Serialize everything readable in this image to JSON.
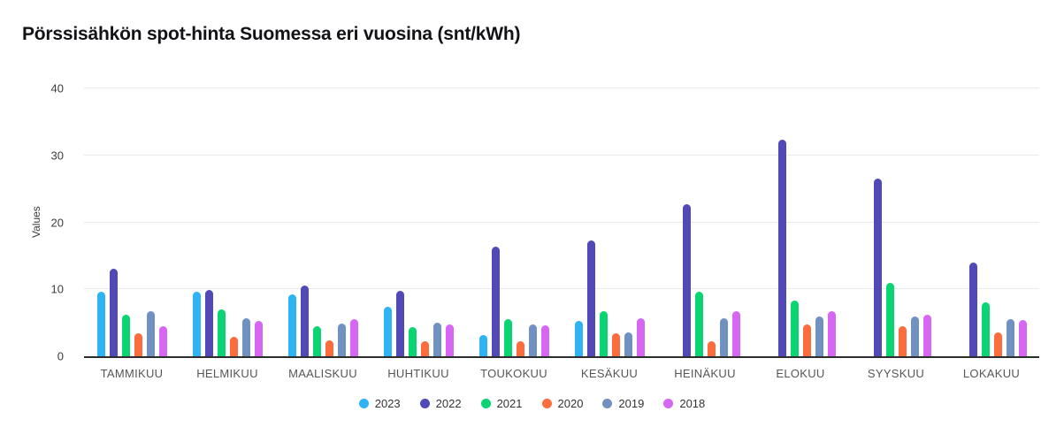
{
  "title": "Pörssisähkön spot-hinta Suomessa eri vuosina (snt/kWh)",
  "chart_data": {
    "type": "bar",
    "title": "Pörssisähkön spot-hinta Suomessa eri vuosina (snt/kWh)",
    "xlabel": "",
    "ylabel": "Values",
    "ylim": [
      0,
      40
    ],
    "yticks": [
      0,
      10,
      20,
      30,
      40
    ],
    "grid": true,
    "legend_position": "bottom",
    "categories": [
      "TAMMIKUU",
      "HELMIKUU",
      "MAALISKUU",
      "HUHTIKUU",
      "TOUKOKUU",
      "KESÄKUU",
      "HEINÄKUU",
      "ELOKUU",
      "SYYSKUU",
      "LOKAKUU"
    ],
    "series": [
      {
        "name": "2023",
        "color": "#2eb4f4",
        "values": [
          9.6,
          9.7,
          9.2,
          7.4,
          3.2,
          5.3,
          null,
          null,
          null,
          null
        ]
      },
      {
        "name": "2022",
        "color": "#5149b8",
        "values": [
          13.1,
          9.9,
          10.6,
          9.8,
          16.4,
          17.3,
          22.7,
          32.4,
          26.5,
          14.0
        ]
      },
      {
        "name": "2021",
        "color": "#0bd473",
        "values": [
          6.2,
          7.0,
          4.5,
          4.4,
          5.5,
          6.8,
          9.6,
          8.3,
          10.9,
          8.0
        ]
      },
      {
        "name": "2020",
        "color": "#fc6c3d",
        "values": [
          3.4,
          2.9,
          2.4,
          2.3,
          2.2,
          3.4,
          2.3,
          4.8,
          4.5,
          3.6
        ]
      },
      {
        "name": "2019",
        "color": "#7191c1",
        "values": [
          6.7,
          5.7,
          4.9,
          5.0,
          4.7,
          3.6,
          5.7,
          5.9,
          5.9,
          5.5
        ]
      },
      {
        "name": "2018",
        "color": "#d767f2",
        "values": [
          4.5,
          5.3,
          5.5,
          4.8,
          4.6,
          5.7,
          6.7,
          6.8,
          6.2,
          5.4
        ]
      }
    ]
  },
  "colors": {
    "background": "#ffffff",
    "grid": "#e9e9e9",
    "axis_line": "#2d2d2d",
    "title_text": "#121217",
    "tick_text": "#3c3c3c",
    "month_text": "#565656",
    "legend_text": "#333333"
  }
}
